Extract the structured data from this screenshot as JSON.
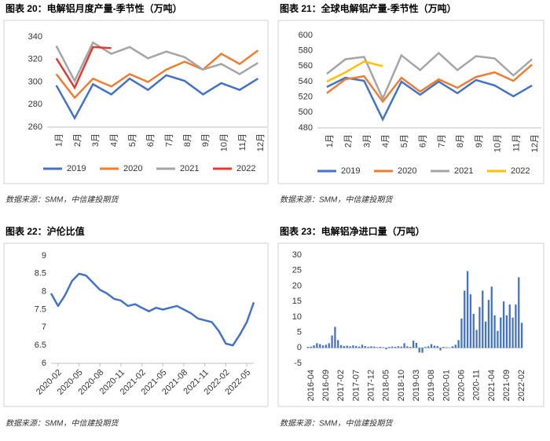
{
  "chart_data": [
    {
      "type": "line",
      "title": "图表 20：电解铝月度产量-季节性（万吨）",
      "source": "数据来源：SMM，中信建投期货",
      "categories": [
        "1月",
        "2月",
        "3月",
        "4月",
        "5月",
        "6月",
        "7月",
        "8月",
        "9月",
        "10月",
        "11月",
        "12月"
      ],
      "ylim": [
        260,
        340
      ],
      "yticks": [
        260,
        280,
        300,
        320,
        340
      ],
      "series": [
        {
          "name": "2019",
          "color": "#4472c4",
          "values": [
            297,
            268,
            298,
            289,
            303,
            293,
            306,
            301,
            289,
            299,
            293,
            303
          ]
        },
        {
          "name": "2020",
          "color": "#ed7d31",
          "values": [
            307,
            286,
            303,
            296,
            307,
            300,
            311,
            318,
            311,
            325,
            316,
            328
          ]
        },
        {
          "name": "2021",
          "color": "#a5a5a5",
          "values": [
            332,
            301,
            335,
            325,
            331,
            321,
            327,
            322,
            311,
            316,
            307,
            317
          ]
        },
        {
          "name": "2022",
          "color": "#e03c31",
          "values": [
            321,
            295,
            331,
            330,
            null,
            null,
            null,
            null,
            null,
            null,
            null,
            null
          ]
        }
      ]
    },
    {
      "type": "line",
      "title": "图表 21：全球电解铝产量-季节性（万吨）",
      "source": "数据来源：SMM，中信建投期货",
      "categories": [
        "1月",
        "2月",
        "3月",
        "4月",
        "5月",
        "6月",
        "7月",
        "8月",
        "9月",
        "10月",
        "11月",
        "12月"
      ],
      "ylim": [
        480,
        600
      ],
      "yticks": [
        480,
        500,
        520,
        540,
        560,
        580,
        600
      ],
      "series": [
        {
          "name": "2019",
          "color": "#4472c4",
          "values": [
            533,
            545,
            541,
            491,
            540,
            523,
            540,
            525,
            542,
            535,
            521,
            535
          ]
        },
        {
          "name": "2020",
          "color": "#ed7d31",
          "values": [
            525,
            543,
            547,
            514,
            545,
            527,
            543,
            532,
            546,
            552,
            541,
            562
          ]
        },
        {
          "name": "2021",
          "color": "#a5a5a5",
          "values": [
            550,
            569,
            572,
            518,
            574,
            555,
            577,
            555,
            573,
            570,
            548,
            569
          ]
        },
        {
          "name": "2022",
          "color": "#ffc000",
          "values": [
            540,
            552,
            566,
            560,
            null,
            null,
            null,
            null,
            null,
            null,
            null,
            null
          ]
        }
      ]
    },
    {
      "type": "line",
      "title": "图表 22：沪伦比值",
      "source": "数据来源：SMM，中信建投期货",
      "x": [
        "2020-01",
        "2020-02",
        "2020-03",
        "2020-04",
        "2020-05",
        "2020-06",
        "2020-07",
        "2020-08",
        "2020-09",
        "2020-10",
        "2020-11",
        "2020-12",
        "2021-01",
        "2021-02",
        "2021-03",
        "2021-04",
        "2021-05",
        "2021-06",
        "2021-07",
        "2021-08",
        "2021-09",
        "2021-10",
        "2021-11",
        "2021-12",
        "2022-01",
        "2022-02",
        "2022-03",
        "2022-04",
        "2022-05",
        "2022-06"
      ],
      "xlim": [
        "2020-01",
        "2022-06"
      ],
      "xticks": [
        "2020-02",
        "2020-05",
        "2020-08",
        "2020-11",
        "2021-02",
        "2021-05",
        "2021-08",
        "2021-11",
        "2022-02",
        "2022-05"
      ],
      "ylim": [
        6,
        9
      ],
      "yticks": [
        6,
        6.5,
        7,
        7.5,
        8,
        8.5,
        9
      ],
      "series": [
        {
          "name": "沪伦比值",
          "color": "#4472c4",
          "values": [
            7.95,
            7.6,
            7.9,
            8.3,
            8.5,
            8.45,
            8.25,
            8.05,
            7.95,
            7.8,
            7.75,
            7.6,
            7.65,
            7.55,
            7.45,
            7.55,
            7.5,
            7.55,
            7.6,
            7.5,
            7.4,
            7.25,
            7.2,
            7.15,
            6.9,
            6.55,
            6.5,
            6.8,
            7.15,
            7.7
          ]
        }
      ]
    },
    {
      "type": "bar",
      "title": "图表 23：电解铝净进口量（万吨）",
      "source": "数据来源：SMM，中信建投期货",
      "color": "#4472c4",
      "categories": [
        "2016-04",
        null,
        null,
        null,
        null,
        "2016-09",
        null,
        null,
        null,
        null,
        "2017-02",
        null,
        null,
        null,
        null,
        "2017-07",
        null,
        null,
        null,
        null,
        "2017-12",
        null,
        null,
        null,
        null,
        "2018-05",
        null,
        null,
        null,
        null,
        "2018-10",
        null,
        null,
        null,
        null,
        "2019-03",
        null,
        null,
        null,
        null,
        "2019-08",
        null,
        null,
        null,
        null,
        "2020-01",
        null,
        null,
        null,
        null,
        "2020-06",
        null,
        null,
        null,
        null,
        "2020-11",
        null,
        null,
        null,
        null,
        "2021-04",
        null,
        null,
        null,
        null,
        "2021-09",
        null,
        null,
        null,
        null,
        "2022-02",
        null
      ],
      "values": [
        0.3,
        0.4,
        0.8,
        1.5,
        1.2,
        0.8,
        1.0,
        1.5,
        4.0,
        6.8,
        2.5,
        0.9,
        0.6,
        0.7,
        0.5,
        0.8,
        0.6,
        0.4,
        1.0,
        0.6,
        0.3,
        0.5,
        0.4,
        0.2,
        0.3,
        0.2,
        -0.5,
        0.3,
        0.4,
        0.3,
        0.5,
        0.4,
        1.5,
        0.5,
        0.3,
        2.3,
        1.6,
        -1.5,
        -1.6,
        0.3,
        0.5,
        1.2,
        0.7,
        0.6,
        -0.8,
        0.3,
        0.2,
        0.1,
        0.5,
        1.0,
        2.5,
        9.5,
        18.5,
        24.8,
        17.3,
        11.0,
        5.8,
        13.2,
        18.5,
        8.5,
        15.5,
        19.8,
        10.5,
        5.5,
        9.8,
        15.0,
        10.5,
        14.0,
        9.8,
        14.0,
        22.8,
        8.1
      ],
      "ylim": [
        -5,
        30
      ],
      "yticks": [
        -5,
        0,
        5,
        10,
        15,
        20,
        25,
        30
      ]
    }
  ]
}
